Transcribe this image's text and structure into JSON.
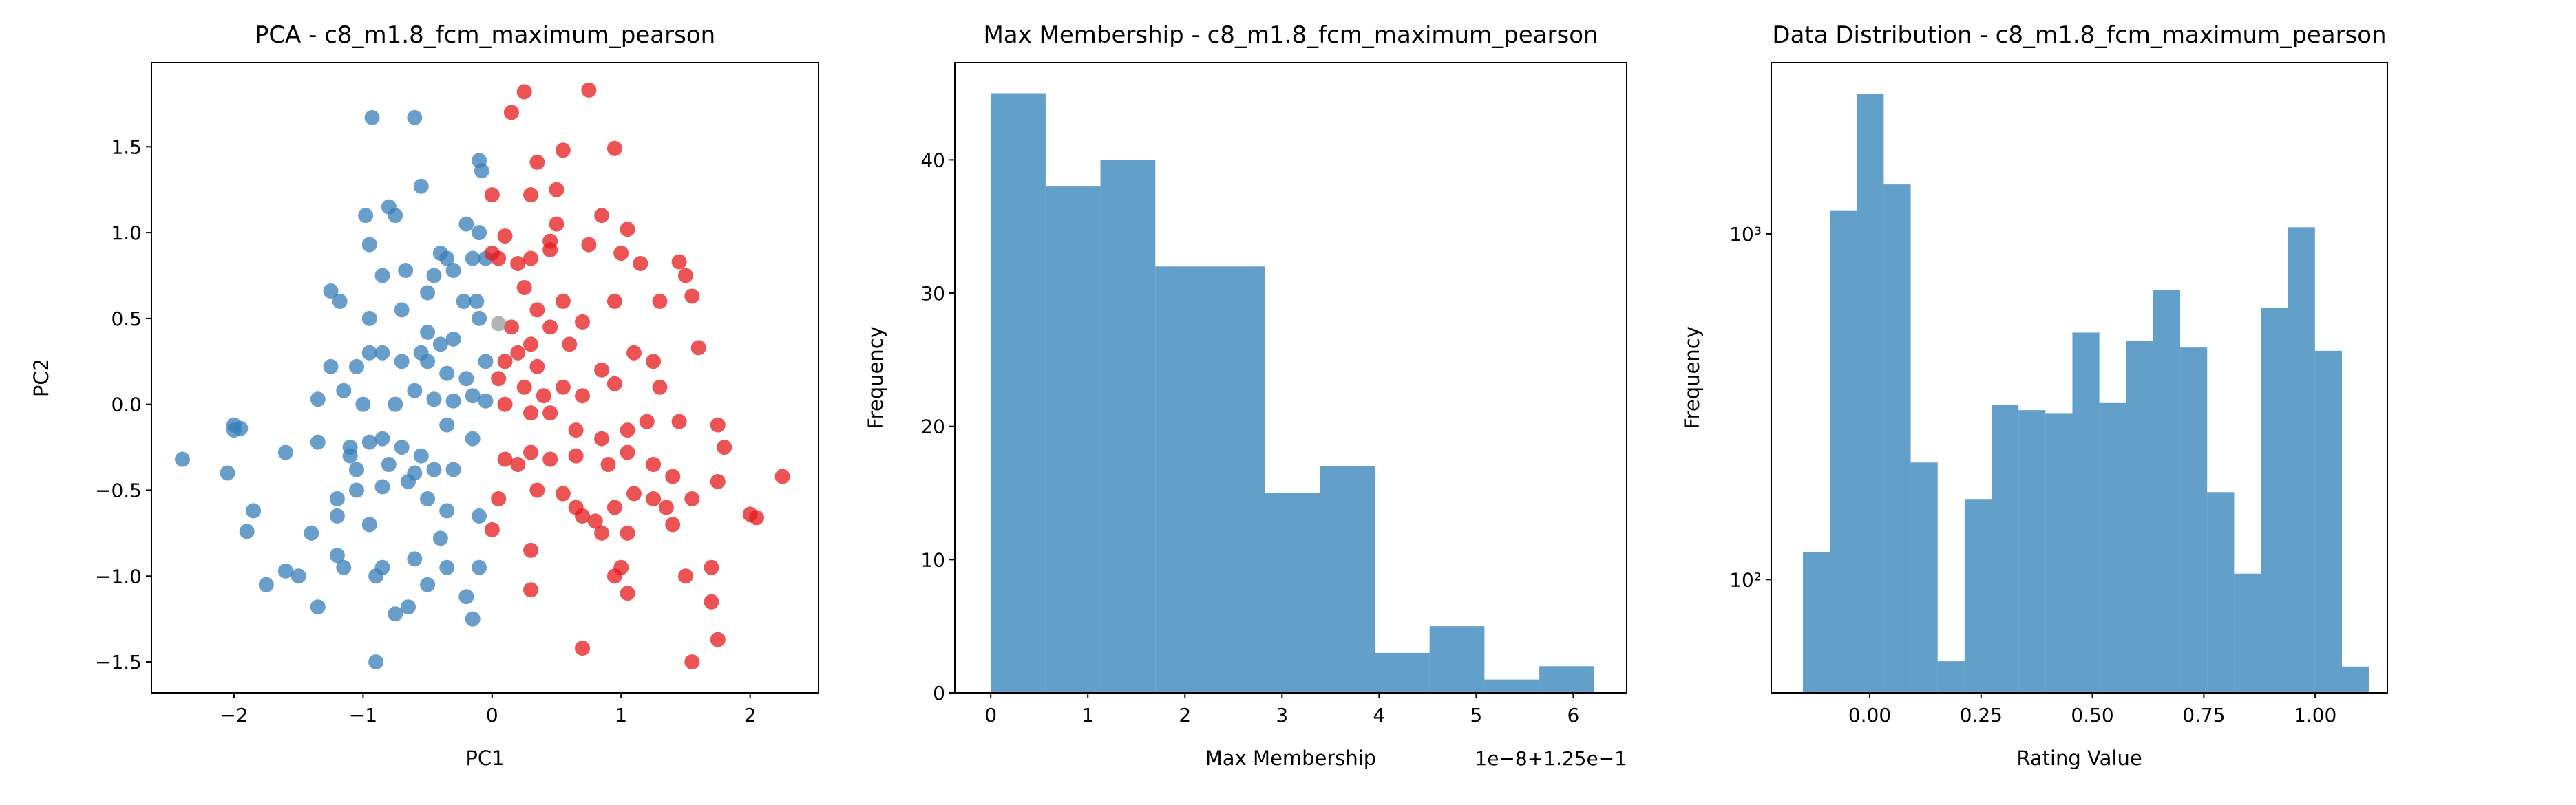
{
  "chart_data": [
    {
      "type": "scatter",
      "title": "PCA - c8_m1.8_fcm_maximum_pearson",
      "x_label": "PC1",
      "y_label": "PC2",
      "xlim": [
        -2.64,
        2.53
      ],
      "ylim": [
        -1.68,
        1.99
      ],
      "xticks": [
        {
          "value": -2,
          "label": "−2"
        },
        {
          "value": -1,
          "label": "−1"
        },
        0,
        1,
        2
      ],
      "yticks": [
        {
          "value": -1.5,
          "label": "−1.5"
        },
        {
          "value": -1.0,
          "label": "−1.0"
        },
        {
          "value": -0.5,
          "label": "−0.5"
        },
        {
          "value": 0.0,
          "label": "0.0"
        },
        0.5,
        {
          "value": 1.0,
          "label": "1.0"
        },
        1.5
      ],
      "alpha": 0.75,
      "series": [
        {
          "color": "#377eb8",
          "x": [
            -0.93,
            -0.6,
            -0.1,
            -0.08,
            -0.98,
            -0.8,
            -0.75,
            -0.55,
            -0.2,
            -0.1,
            -0.95,
            -0.67,
            -0.4,
            -0.35,
            -0.3,
            -0.15,
            -0.05,
            -1.25,
            -1.18,
            -0.85,
            -0.7,
            -0.5,
            -0.45,
            -0.22,
            -0.12,
            -0.95,
            -0.5,
            -0.4,
            -0.3,
            -0.1,
            -0.7,
            -0.85,
            -0.95,
            -1.25,
            -1.05,
            -0.55,
            -0.5,
            -0.35,
            -0.2,
            -0.05,
            -1.15,
            -1.35,
            -1.0,
            -0.75,
            -0.6,
            -0.45,
            -0.3,
            -0.15,
            -0.05,
            -2.0,
            -2.0,
            -1.95,
            -2.4,
            -2.05,
            -1.6,
            -1.35,
            -1.1,
            -0.95,
            -0.85,
            -0.7,
            -0.55,
            -0.45,
            -0.3,
            -0.35,
            -0.15,
            -1.1,
            -1.05,
            -0.8,
            -0.6,
            -1.85,
            -1.9,
            -1.2,
            -1.05,
            -0.85,
            -0.65,
            -0.5,
            -0.35,
            -0.1,
            -1.4,
            -1.2,
            -0.95,
            -0.4,
            -1.75,
            -1.6,
            -1.5,
            -1.2,
            -1.15,
            -0.85,
            -0.6,
            -0.35,
            -0.1,
            -1.35,
            -0.9,
            -0.75,
            -0.65,
            -0.15,
            -0.5,
            -0.2,
            -0.9
          ],
          "y": [
            1.67,
            1.67,
            1.42,
            1.36,
            1.1,
            1.15,
            1.1,
            1.27,
            1.05,
            1.0,
            0.93,
            0.78,
            0.88,
            0.85,
            0.78,
            0.85,
            0.85,
            0.66,
            0.6,
            0.75,
            0.55,
            0.65,
            0.75,
            0.6,
            0.6,
            0.5,
            0.42,
            0.35,
            0.38,
            0.5,
            0.25,
            0.3,
            0.3,
            0.22,
            0.22,
            0.3,
            0.25,
            0.18,
            0.15,
            0.25,
            0.08,
            0.03,
            0.0,
            0.0,
            0.08,
            0.03,
            0.02,
            0.05,
            0.02,
            -0.12,
            -0.15,
            -0.14,
            -0.32,
            -0.4,
            -0.28,
            -0.22,
            -0.25,
            -0.22,
            -0.2,
            -0.25,
            -0.3,
            -0.38,
            -0.38,
            -0.12,
            -0.2,
            -0.3,
            -0.38,
            -0.35,
            -0.4,
            -0.62,
            -0.74,
            -0.55,
            -0.5,
            -0.48,
            -0.45,
            -0.55,
            -0.62,
            -0.65,
            -0.75,
            -0.65,
            -0.7,
            -0.78,
            -1.05,
            -0.97,
            -1.0,
            -0.88,
            -0.95,
            -0.95,
            -0.9,
            -0.95,
            -0.95,
            -1.18,
            -1.0,
            -1.22,
            -1.18,
            -1.25,
            -1.05,
            -1.12,
            -1.5
          ]
        },
        {
          "color": "#e41a1c",
          "x": [
            0.25,
            0.75,
            0.15,
            0.35,
            0.55,
            0.95,
            0.0,
            0.3,
            0.5,
            0.1,
            0.5,
            0.85,
            1.05,
            0.0,
            0.05,
            0.3,
            0.45,
            0.45,
            0.75,
            1.0,
            1.15,
            1.45,
            1.5,
            1.55,
            0.2,
            0.25,
            0.55,
            0.95,
            1.3,
            0.35,
            0.45,
            0.7,
            0.15,
            0.3,
            0.1,
            0.2,
            0.35,
            0.6,
            0.85,
            1.1,
            1.25,
            1.6,
            0.05,
            0.25,
            0.4,
            0.55,
            0.7,
            0.95,
            1.3,
            0.1,
            0.3,
            0.45,
            0.65,
            0.85,
            1.05,
            1.2,
            1.45,
            1.75,
            0.3,
            0.1,
            0.2,
            0.45,
            0.65,
            0.9,
            1.05,
            1.25,
            1.4,
            1.8,
            2.25,
            0.05,
            0.35,
            0.55,
            0.65,
            0.7,
            0.8,
            0.95,
            1.1,
            1.25,
            1.35,
            1.55,
            1.75,
            2.0,
            2.05,
            0.0,
            0.3,
            0.85,
            1.05,
            1.4,
            1.0,
            0.95,
            0.3,
            1.7,
            1.5,
            1.05,
            1.7,
            0.7,
            1.75,
            1.55
          ],
          "y": [
            1.82,
            1.83,
            1.7,
            1.41,
            1.48,
            1.49,
            1.22,
            1.22,
            1.25,
            0.98,
            1.05,
            1.1,
            1.02,
            0.88,
            0.85,
            0.85,
            0.9,
            0.95,
            0.93,
            0.88,
            0.82,
            0.83,
            0.75,
            0.63,
            0.82,
            0.68,
            0.6,
            0.6,
            0.6,
            0.55,
            0.45,
            0.48,
            0.45,
            0.35,
            0.25,
            0.3,
            0.22,
            0.35,
            0.2,
            0.3,
            0.25,
            0.33,
            0.15,
            0.1,
            0.05,
            0.1,
            0.05,
            0.12,
            0.1,
            0.0,
            -0.05,
            -0.05,
            -0.15,
            -0.2,
            -0.15,
            -0.1,
            -0.1,
            -0.12,
            -0.28,
            -0.32,
            -0.35,
            -0.32,
            -0.3,
            -0.35,
            -0.28,
            -0.35,
            -0.42,
            -0.25,
            -0.42,
            -0.55,
            -0.5,
            -0.52,
            -0.6,
            -0.65,
            -0.68,
            -0.6,
            -0.52,
            -0.55,
            -0.6,
            -0.55,
            -0.45,
            -0.64,
            -0.66,
            -0.73,
            -0.85,
            -0.75,
            -0.75,
            -0.7,
            -0.95,
            -1.0,
            -1.08,
            -0.95,
            -1.0,
            -1.1,
            -1.15,
            -1.42,
            -1.37,
            -1.5
          ]
        },
        {
          "color": "#999999",
          "x": [
            0.05
          ],
          "y": [
            0.47
          ]
        }
      ]
    },
    {
      "type": "histogram",
      "title": "Max Membership - c8_m1.8_fcm_maximum_pearson",
      "x_label": "Max Membership",
      "y_label": "Frequency",
      "x_offset_label": "1e−8+1.25e−1",
      "xlim": [
        -0.37,
        6.55
      ],
      "ylim": [
        0,
        47.3
      ],
      "xticks": [
        0,
        1,
        2,
        3,
        4,
        5,
        6
      ],
      "yticks": [
        0,
        10,
        20,
        30,
        40
      ],
      "color": "#1f77b4",
      "alpha": 0.7,
      "bins": [
        0,
        0.565,
        1.13,
        1.695,
        2.26,
        2.825,
        3.39,
        3.955,
        4.52,
        5.085,
        5.65,
        6.215
      ],
      "values": [
        45,
        38,
        40,
        32,
        32,
        15,
        17,
        3,
        5,
        1,
        2
      ]
    },
    {
      "type": "histogram",
      "title": "Data Distribution - c8_m1.8_fcm_maximum_pearson",
      "x_label": "Rating Value",
      "y_label": "Frequency",
      "log_y": true,
      "xlim": [
        -0.221,
        1.162
      ],
      "ylim": [
        47,
        3130
      ],
      "xticks": [
        {
          "value": 0,
          "label": "0.00"
        },
        0.25,
        {
          "value": 0.5,
          "label": "0.50"
        },
        0.75,
        {
          "value": 1,
          "label": "1.00"
        }
      ],
      "yticks": [
        {
          "value": 100,
          "label": "10²"
        },
        {
          "value": 1000,
          "label": "10³"
        }
      ],
      "color": "#1f77b4",
      "alpha": 0.7,
      "bins": [
        -0.15,
        -0.0895,
        -0.029,
        0.0315,
        0.092,
        0.1525,
        0.213,
        0.2735,
        0.334,
        0.3945,
        0.455,
        0.5155,
        0.576,
        0.6365,
        0.697,
        0.7575,
        0.818,
        0.8785,
        0.939,
        0.9995,
        1.06,
        1.1205
      ],
      "values": [
        120,
        1170,
        2540,
        1390,
        218,
        58,
        171,
        320,
        309,
        303,
        518,
        324,
        490,
        689,
        469,
        179,
        104,
        610,
        1045,
        459,
        56
      ]
    }
  ]
}
